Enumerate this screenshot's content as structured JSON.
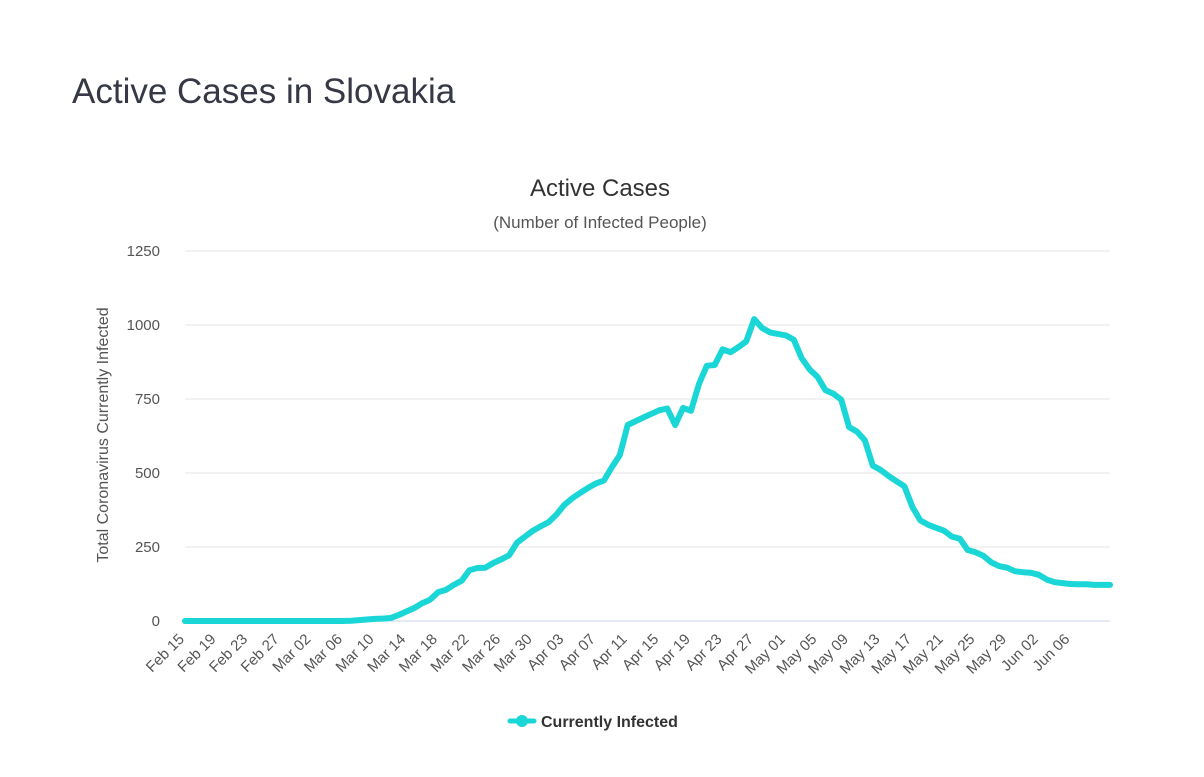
{
  "page": {
    "title": "Active Cases in Slovakia"
  },
  "colors": {
    "series": "#1ad6d6",
    "grid": "#e6e6e6",
    "axis": "#ccd6eb",
    "title": "#363945"
  },
  "chart_data": {
    "type": "line",
    "title": "Active Cases",
    "subtitle": "(Number of Infected People)",
    "xlabel": "",
    "ylabel": "Total Coronavirus Currently Infected",
    "ylim": [
      0,
      1250
    ],
    "yticks": [
      "0",
      "250",
      "500",
      "750",
      "1000",
      "1250"
    ],
    "ytick_values": [
      0,
      250,
      500,
      750,
      1000,
      1250
    ],
    "grid": true,
    "legend": "bottom-center",
    "xtick_labels": [
      "Feb 15",
      "Feb 19",
      "Feb 23",
      "Feb 27",
      "Mar 02",
      "Mar 06",
      "Mar 10",
      "Mar 14",
      "Mar 18",
      "Mar 22",
      "Mar 26",
      "Mar 30",
      "Apr 03",
      "Apr 07",
      "Apr 11",
      "Apr 15",
      "Apr 19",
      "Apr 23",
      "Apr 27",
      "May 01",
      "May 05",
      "May 09",
      "May 13",
      "May 17",
      "May 21",
      "May 25",
      "May 29",
      "Jun 02",
      "Jun 06"
    ],
    "xtick_step_days": 4,
    "series": [
      {
        "name": "Currently Infected",
        "values": [
          0,
          0,
          0,
          0,
          0,
          0,
          0,
          0,
          0,
          0,
          0,
          0,
          0,
          0,
          0,
          0,
          0,
          0,
          0,
          0,
          0,
          1,
          3,
          5,
          7,
          8,
          10,
          20,
          32,
          44,
          60,
          72,
          97,
          105,
          122,
          136,
          172,
          179,
          180,
          196,
          208,
          222,
          265,
          285,
          305,
          320,
          334,
          360,
          393,
          415,
          433,
          450,
          465,
          475,
          520,
          560,
          662,
          675,
          688,
          700,
          712,
          718,
          662,
          720,
          710,
          800,
          862,
          865,
          918,
          908,
          925,
          945,
          1020,
          990,
          975,
          970,
          965,
          950,
          888,
          850,
          825,
          780,
          768,
          748,
          655,
          640,
          610,
          525,
          510,
          490,
          472,
          455,
          385,
          340,
          325,
          315,
          305,
          285,
          278,
          240,
          232,
          220,
          198,
          185,
          180,
          168,
          165,
          163,
          156,
          140,
          131,
          128,
          125,
          124,
          124,
          122,
          122,
          122
        ]
      }
    ]
  }
}
